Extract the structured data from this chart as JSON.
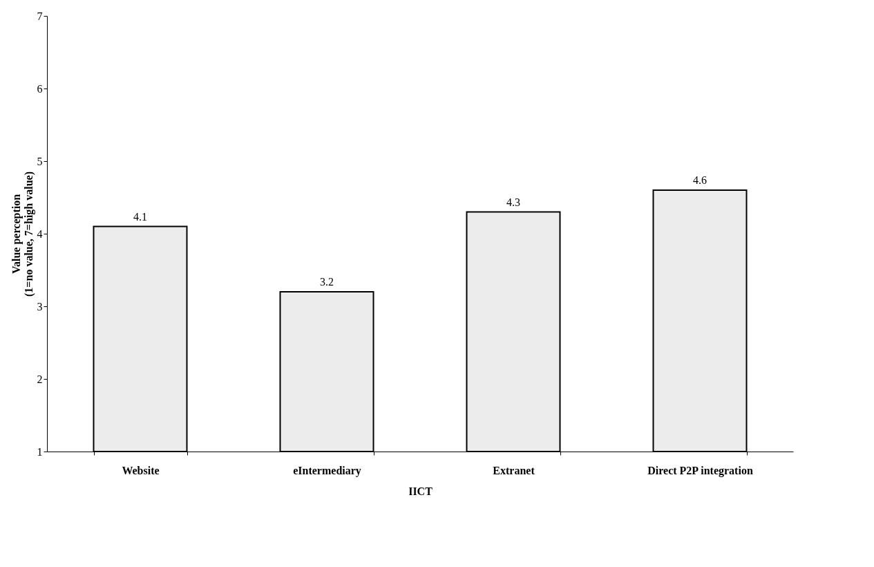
{
  "chart_data": {
    "type": "bar",
    "xlabel": "IICT",
    "ylabel": "Value perception\n(1=no value, 7=high value)",
    "categories": [
      "Website",
      "eIntermediary",
      "Extranet",
      "Direct P2P integration"
    ],
    "values": [
      4.1,
      3.2,
      4.3,
      4.6
    ],
    "color": "#ececec",
    "ylim": [
      1,
      7
    ],
    "yticks": [
      1,
      2,
      3,
      4,
      5,
      6,
      7
    ],
    "grid": false,
    "data_labels": true
  }
}
